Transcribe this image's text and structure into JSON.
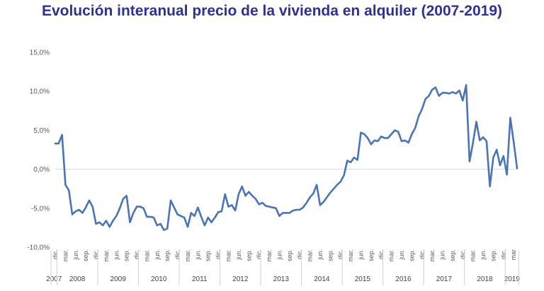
{
  "chart_data": {
    "type": "line",
    "title": "Evolución interanual precio de la vivienda en alquiler (2007-2019)",
    "xlabel": "",
    "ylabel": "",
    "ylim": [
      -10,
      15
    ],
    "y_ticks": [
      -10,
      -5,
      0,
      5,
      10,
      15
    ],
    "y_tick_labels": [
      "-10,0%",
      "-5,0%",
      "0,0%",
      "5,0%",
      "10,0%",
      "15,0%"
    ],
    "month_ticks": [
      "dic.",
      "mar.",
      "jun.",
      "sep.",
      "dic.",
      "mar.",
      "jun.",
      "sep.",
      "dic.",
      "mar.",
      "jun.",
      "sep.",
      "dic.",
      "mar.",
      "jun.",
      "sep.",
      "dic.",
      "mar.",
      "jun.",
      "sep.",
      "dic.",
      "mar.",
      "jun.",
      "sep.",
      "dic.",
      "mar.",
      "jun.",
      "sep.",
      "dic.",
      "mar.",
      "jun.",
      "sep.",
      "dic.",
      "mar.",
      "jun.",
      "sep.",
      "dic.",
      "mar.",
      "jun.",
      "sep.",
      "dic.",
      "mar.",
      "jun.",
      "sep.",
      "dic.",
      "mar"
    ],
    "years": [
      "2007",
      "2008",
      "2009",
      "2010",
      "2011",
      "2012",
      "2013",
      "2014",
      "2015",
      "2016",
      "2017",
      "2018",
      "2019"
    ],
    "start": "2007-12",
    "series": [
      {
        "name": "",
        "color": "#4a74b4",
        "values": [
          3.3,
          3.3,
          4.4,
          -2.0,
          -2.7,
          -5.8,
          -5.4,
          -5.2,
          -5.6,
          -4.9,
          -4.0,
          -4.8,
          -7.0,
          -6.8,
          -7.2,
          -6.6,
          -7.4,
          -6.6,
          -6.0,
          -5.0,
          -3.8,
          -3.4,
          -6.8,
          -5.6,
          -4.8,
          -4.8,
          -5.0,
          -6.1,
          -6.1,
          -6.2,
          -7.2,
          -7.0,
          -7.8,
          -7.6,
          -4.0,
          -4.9,
          -5.8,
          -6.0,
          -6.2,
          -7.4,
          -5.6,
          -6.0,
          -4.9,
          -6.1,
          -7.2,
          -6.2,
          -6.8,
          -6.2,
          -5.5,
          -5.4,
          -3.2,
          -4.8,
          -4.6,
          -5.3,
          -3.2,
          -2.2,
          -3.4,
          -2.9,
          -3.4,
          -3.8,
          -4.5,
          -4.3,
          -4.7,
          -4.8,
          -4.9,
          -5.0,
          -6.0,
          -5.6,
          -5.6,
          -5.6,
          -5.3,
          -5.2,
          -5.2,
          -4.9,
          -4.3,
          -3.6,
          -3.1,
          -2.0,
          -4.6,
          -4.2,
          -3.6,
          -3.0,
          -2.5,
          -2.0,
          -1.6,
          -0.8,
          1.1,
          0.9,
          1.5,
          1.2,
          4.7,
          4.5,
          4.0,
          3.2,
          3.7,
          3.6,
          4.2,
          4.0,
          4.0,
          4.5,
          5.0,
          4.8,
          3.6,
          3.7,
          3.4,
          4.5,
          5.3,
          6.8,
          7.7,
          9.0,
          9.4,
          10.2,
          10.5,
          9.4,
          9.8,
          9.8,
          9.7,
          9.9,
          9.7,
          10.1,
          8.8,
          10.8,
          1.0,
          3.4,
          6.1,
          3.7,
          4.1,
          3.6,
          -2.2,
          1.5,
          2.5,
          0.5,
          1.7,
          -0.7,
          6.6,
          3.5,
          0.1
        ]
      }
    ],
    "grid": false,
    "zero_line": true,
    "legend": "none"
  }
}
